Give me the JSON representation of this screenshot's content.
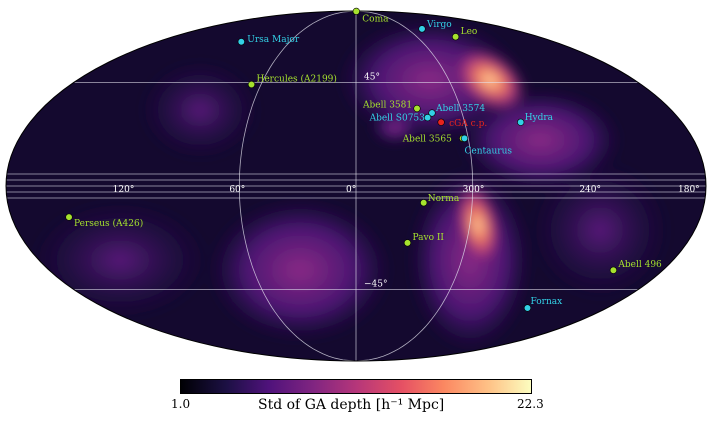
{
  "chart_data": {
    "type": "heatmap",
    "projection": "mollweide",
    "colormap": "magma",
    "colorbar": {
      "min": 1.0,
      "max": 22.3,
      "min_label": "1.0",
      "max_label": "22.3",
      "label": "Std of GA depth [h⁻¹ Mpc]"
    },
    "graticule": {
      "lon_labels": [
        "120°",
        "60°",
        "0°",
        "300°",
        "240°",
        "180°"
      ],
      "lat_labels": [
        "45°",
        "−45°"
      ]
    },
    "markers": [
      {
        "name": "Coma",
        "lon": -2,
        "lat": 89,
        "color": "#a6e22e"
      },
      {
        "name": "Virgo",
        "lon": 283,
        "lat": 74,
        "color": "#33d1e6"
      },
      {
        "name": "Leo",
        "lon": 262,
        "lat": 69,
        "color": "#a6e22e"
      },
      {
        "name": "Ursa Major",
        "lon": 104,
        "lat": 66,
        "color": "#33d1e6"
      },
      {
        "name": "Hercules (A2199)",
        "lon": 66,
        "lat": 44,
        "color": "#a6e22e"
      },
      {
        "name": "Abell 3581",
        "lon": 325,
        "lat": 33,
        "color": "#a6e22e"
      },
      {
        "name": "Abell 3574",
        "lon": 317,
        "lat": 31,
        "color": "#33d1e6"
      },
      {
        "name": "Abell S0753",
        "lon": 320,
        "lat": 29,
        "color": "#33d1e6"
      },
      {
        "name": "cGA c.p.",
        "lon": 313,
        "lat": 27,
        "color": "#e8241d"
      },
      {
        "name": "Hydra",
        "lon": 269,
        "lat": 27,
        "color": "#33d1e6"
      },
      {
        "name": "Abell 3565",
        "lon": 303,
        "lat": 20,
        "color": "#a6e22e"
      },
      {
        "name": "Centaurus",
        "lon": 302,
        "lat": 20,
        "color": "#33d1e6"
      },
      {
        "name": "Norma",
        "lon": 325,
        "lat": -7,
        "color": "#a6e22e"
      },
      {
        "name": "Perseus (A426)",
        "lon": 150,
        "lat": -13,
        "color": "#a6e22e"
      },
      {
        "name": "Pavo II",
        "lon": 332,
        "lat": -24,
        "color": "#a6e22e"
      },
      {
        "name": "Abell 496",
        "lon": 209,
        "lat": -36,
        "color": "#a6e22e"
      },
      {
        "name": "Fornax",
        "lon": 237,
        "lat": -54,
        "color": "#33d1e6"
      }
    ]
  }
}
